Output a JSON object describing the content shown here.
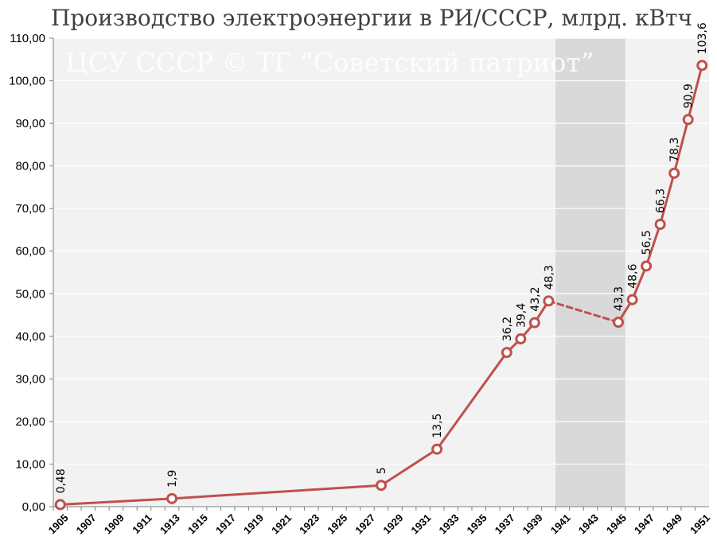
{
  "chart_data": {
    "type": "line",
    "title": "Производство электроэнергии в РИ/СССР, млрд. кВтч",
    "watermark": "ЦСУ СССР © ТГ “Советский патриот”",
    "x_categories": [
      1905,
      1906,
      1907,
      1908,
      1909,
      1910,
      1911,
      1912,
      1913,
      1914,
      1915,
      1916,
      1917,
      1918,
      1919,
      1920,
      1921,
      1922,
      1923,
      1924,
      1925,
      1926,
      1927,
      1928,
      1929,
      1930,
      1931,
      1932,
      1933,
      1934,
      1935,
      1936,
      1937,
      1938,
      1939,
      1940,
      1941,
      1942,
      1943,
      1944,
      1945,
      1946,
      1947,
      1948,
      1949,
      1950,
      1951
    ],
    "x_tick_labels": [
      "1905",
      "1907",
      "1909",
      "1911",
      "1913",
      "1915",
      "1917",
      "1919",
      "1921",
      "1923",
      "1925",
      "1927",
      "1929",
      "1931",
      "1933",
      "1935",
      "1937",
      "1939",
      "1941",
      "1943",
      "1945",
      "1947",
      "1949",
      "1951"
    ],
    "ylim": [
      0,
      110
    ],
    "y_tick_labels": [
      "0,00",
      "10,00",
      "20,00",
      "30,00",
      "40,00",
      "50,00",
      "60,00",
      "70,00",
      "80,00",
      "90,00",
      "100,00",
      "110,00"
    ],
    "grid": true,
    "shaded_range": [
      1941,
      1945
    ],
    "series": [
      {
        "color": "#c0504d",
        "points": [
          {
            "x": 1905,
            "y": 0.48,
            "label": "0,48"
          },
          {
            "x": 1913,
            "y": 1.9,
            "label": "1,9"
          },
          {
            "x": 1928,
            "y": 5,
            "label": "5"
          },
          {
            "x": 1932,
            "y": 13.5,
            "label": "13,5"
          },
          {
            "x": 1937,
            "y": 36.2,
            "label": "36,2"
          },
          {
            "x": 1938,
            "y": 39.4,
            "label": "39,4"
          },
          {
            "x": 1939,
            "y": 43.2,
            "label": "43,2"
          },
          {
            "x": 1940,
            "y": 48.3,
            "label": "48,3"
          },
          {
            "x": 1945,
            "y": 43.3,
            "label": "43,3"
          },
          {
            "x": 1946,
            "y": 48.6,
            "label": "48,6"
          },
          {
            "x": 1947,
            "y": 56.5,
            "label": "56,5"
          },
          {
            "x": 1948,
            "y": 66.3,
            "label": "66,3"
          },
          {
            "x": 1949,
            "y": 78.3,
            "label": "78,3"
          },
          {
            "x": 1950,
            "y": 90.9,
            "label": "90,9"
          },
          {
            "x": 1951,
            "y": 103.6,
            "label": "103,6"
          }
        ],
        "dashed_segment": [
          1940,
          1945
        ]
      }
    ],
    "colors": {
      "plot_background": "#f2f2f2",
      "shaded_band": "#d9d9d9",
      "gridline": "#ffffff",
      "marker_fill": "#ffffff"
    }
  }
}
